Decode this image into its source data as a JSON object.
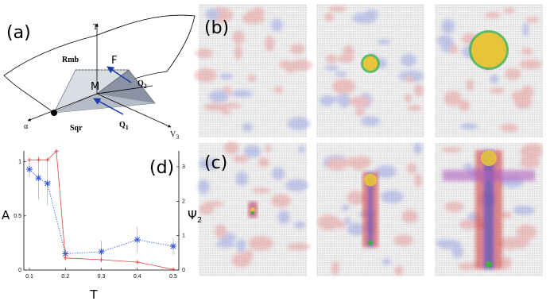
{
  "panels": {
    "a": "(a)",
    "b": "(b)",
    "c": "(c)",
    "d": "(d)"
  },
  "diagram": {
    "axis_t": "T",
    "rmb": "Rmb",
    "force": "F",
    "m": "M",
    "q2": {
      "text": "Q",
      "sub": "2"
    },
    "q1": {
      "text": "Q",
      "sub": "1"
    },
    "alpha": "α",
    "sqr": "Sqr",
    "v3": {
      "text": "V",
      "sub": "3"
    }
  },
  "chart_data": {
    "type": "line",
    "x_label": "T",
    "y_label": "A",
    "y2_label": {
      "text": "Ψ",
      "sub": "2"
    },
    "xlim": [
      0.0845,
      0.5155
    ],
    "xticks": [
      0.1,
      0.2,
      0.3,
      0.4,
      0.5
    ],
    "ylim": [
      0,
      1.1
    ],
    "yticks": [
      0,
      0.5,
      1
    ],
    "y2lim": [
      0,
      3.46
    ],
    "y2ticks": [
      0,
      1,
      2,
      3
    ],
    "series": [
      {
        "color": "#3355dd",
        "marker": "star",
        "x": [
          0.1,
          0.125,
          0.15,
          0.2,
          0.3,
          0.4,
          0.5
        ],
        "values": [
          0.93,
          0.85,
          0.8,
          0.15,
          0.17,
          0.28,
          0.22
        ],
        "errors": [
          0.07,
          0.2,
          0.2,
          0.05,
          0.1,
          0.12,
          0.08
        ]
      },
      {
        "color": "#e84040",
        "marker": "plus",
        "axis": "y2",
        "x": [
          0.1,
          0.125,
          0.15,
          0.175,
          0.2,
          0.3,
          0.4,
          0.5
        ],
        "values": [
          3.2,
          3.2,
          3.2,
          3.45,
          0.35,
          0.3,
          0.23,
          0.02
        ]
      }
    ]
  }
}
